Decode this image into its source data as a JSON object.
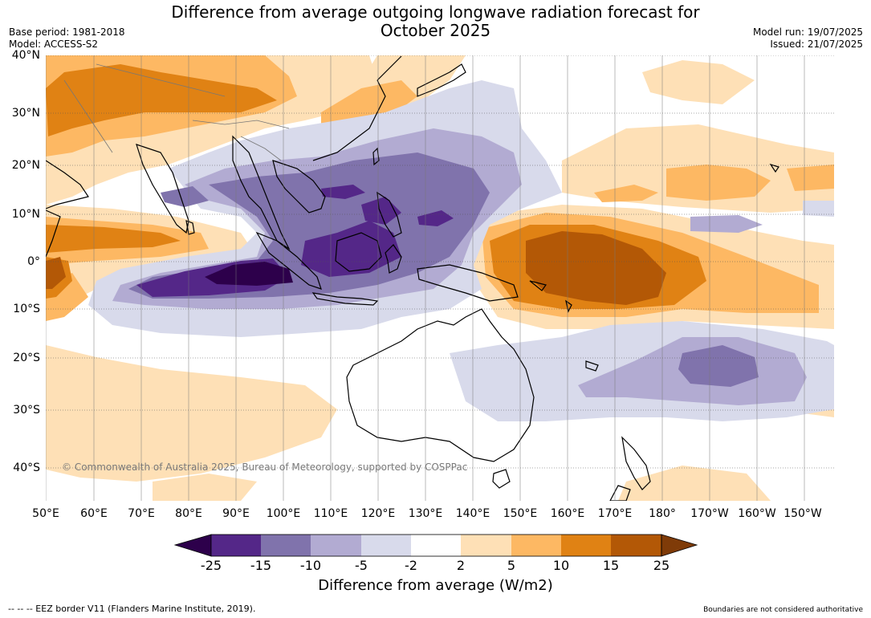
{
  "title_line1": "Difference from average outgoing longwave radiation forecast for",
  "title_line2": "October 2025",
  "base_period": "Base period: 1981-2018",
  "model": "Model: ACCESS-S2",
  "model_run": "Model run: 19/07/2025",
  "issued": "Issued: 21/07/2025",
  "lat_labels": [
    "40°N",
    "30°N",
    "20°N",
    "10°N",
    "0°",
    "10°S",
    "20°S",
    "30°S",
    "40°S"
  ],
  "lon_labels": [
    "50°E",
    "60°E",
    "70°E",
    "80°E",
    "90°E",
    "100°E",
    "110°E",
    "120°E",
    "130°E",
    "140°E",
    "150°E",
    "160°E",
    "170°E",
    "180°",
    "170°W",
    "160°W",
    "150°W"
  ],
  "copyright": "© Commonwealth of Australia 2025, Bureau of Meteorology, supported by COSPPac",
  "colorbar": {
    "label": "Difference from average (W/m2)",
    "ticks": [
      "-25",
      "-15",
      "-10",
      "-5",
      "-2",
      "2",
      "5",
      "10",
      "15",
      "25"
    ],
    "colors": [
      "#2d004b",
      "#542788",
      "#8073ac",
      "#b2abd2",
      "#d8daeb",
      "#ffffff",
      "#fee0b6",
      "#fdb863",
      "#e08214",
      "#b35806",
      "#7f3b08"
    ]
  },
  "footer_left": "--  --  -- EEZ border V11 (Flanders Marine Institute, 2019).",
  "footer_right": "Boundaries are not considered authoritative"
}
